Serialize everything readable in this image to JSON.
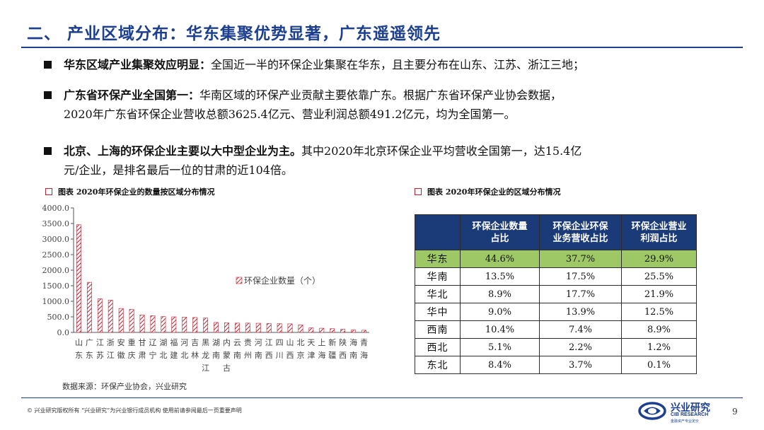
{
  "header": {
    "title": "二、 产业区域分布：华东集聚优势显著，广东遥遥领先"
  },
  "bullets": [
    {
      "highlight": "华东区域产业集聚效应明显：",
      "text": "全国近一半的环保企业集聚在华东，且主要分布在山东、江苏、浙江三地；"
    },
    {
      "highlight": "广东省环保产业全国第一：",
      "text": "华南区域的环保产业贡献主要依靠广东。根据广东省环保产业协会数据，",
      "text2": "2020年广东省环保企业营收总额3625.4亿元、营业利润总额491.2亿元，均为全国第一。"
    },
    {
      "highlight": "北京、上海的环保企业主要以大中型企业为主。",
      "text": "其中2020年北京环保企业平均营收全国第一，达15.4亿",
      "text2": "元/企业，是排名最后一位的甘肃的近104倍。"
    }
  ],
  "left_panel": {
    "title": "图表 2020年环保企业的数量按区域分布情况",
    "source": "数据来源：环保产业协会，兴业研究"
  },
  "right_panel": {
    "title": "图表 2020年环保企业的区域分布情况"
  },
  "chart_data": {
    "type": "bar",
    "categories": [
      "山东",
      "广东",
      "江苏",
      "浙江",
      "安徽",
      "重庆",
      "甘肃",
      "辽宁",
      "湖北",
      "福建",
      "河北",
      "吉林",
      "黑龙江",
      "湖南",
      "内蒙古",
      "云南",
      "贵州",
      "河南",
      "江西",
      "四川",
      "山西",
      "北京",
      "天津",
      "上海",
      "新疆",
      "陕西",
      "海南",
      "青海"
    ],
    "series": [
      {
        "name": "环保企业数量（个）",
        "values": [
          3460,
          1610,
          1080,
          1040,
          770,
          740,
          560,
          540,
          510,
          500,
          490,
          480,
          460,
          320,
          310,
          300,
          300,
          295,
          285,
          280,
          275,
          240,
          145,
          135,
          120,
          100,
          75,
          70
        ]
      }
    ],
    "ylim": [
      0,
      4000
    ],
    "yticks": [
      "0.0",
      "500.0",
      "1000.0",
      "1500.0",
      "2000.0",
      "2500.0",
      "3000.0",
      "3500.0",
      "4000.0"
    ],
    "legend_position": "center-right",
    "bar_color": "#c0202d",
    "bar_pattern": "diagonal-hatch"
  },
  "table": {
    "headers": [
      "环保企业数量占比",
      "环保企业环保业务营收占比",
      "环保企业营业利润占比"
    ],
    "header_lines": [
      [
        "环保企业数量",
        "占比"
      ],
      [
        "环保企业环保",
        "业务营收占比"
      ],
      [
        "环保企业营业",
        "利润占比"
      ]
    ],
    "rows": [
      {
        "region": "华东",
        "values": [
          "44.6%",
          "37.7%",
          "29.9%"
        ],
        "highlight": true
      },
      {
        "region": "华南",
        "values": [
          "13.5%",
          "17.5%",
          "25.5%"
        ],
        "highlight": false
      },
      {
        "region": "华北",
        "values": [
          "8.9%",
          "17.7%",
          "21.9%"
        ],
        "highlight": false
      },
      {
        "region": "华中",
        "values": [
          "9.0%",
          "13.9%",
          "12.5%"
        ],
        "highlight": false
      },
      {
        "region": "西南",
        "values": [
          "10.4%",
          "7.4%",
          "8.9%"
        ],
        "highlight": false
      },
      {
        "region": "西北",
        "values": [
          "5.1%",
          "2.2%",
          "1.2%"
        ],
        "highlight": false
      },
      {
        "region": "东北",
        "values": [
          "8.4%",
          "3.7%",
          "0.1%"
        ],
        "highlight": false
      }
    ],
    "header_color": "#1b3a78",
    "highlight_color": "#9ec766"
  },
  "footer": {
    "copyright": "©  兴业研究版权所有    “兴业研究”为兴业银行成员机构    使用前请参阅最后一页重要声明",
    "page_number": "9",
    "logo_cn": "兴业研究",
    "logo_en": "CIB RESEARCH",
    "logo_sub": "金融资产专业定价"
  }
}
